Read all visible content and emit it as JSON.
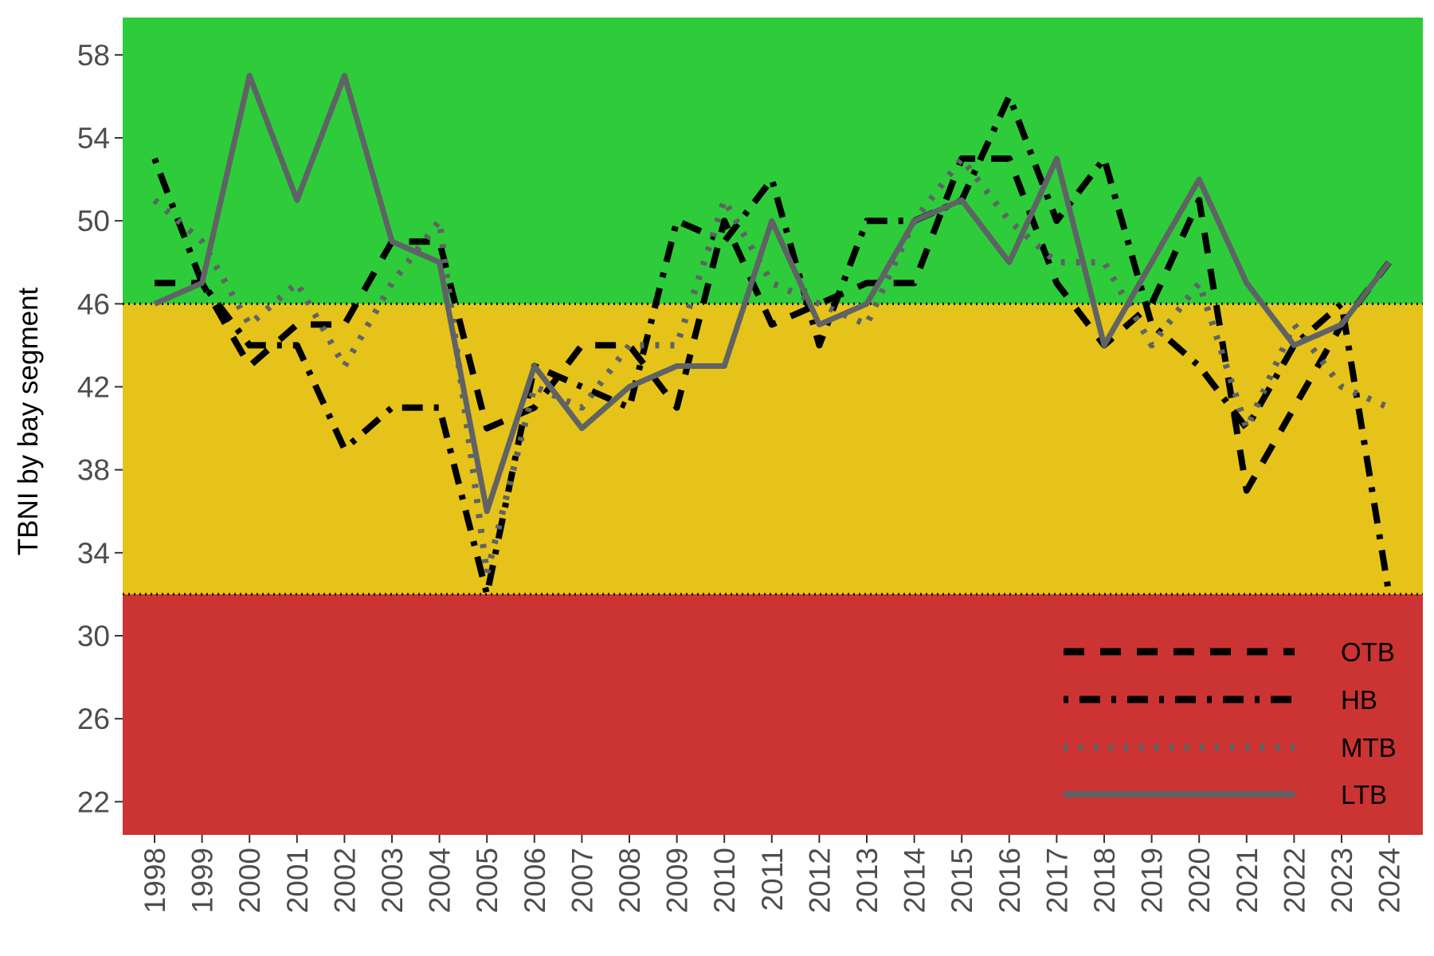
{
  "chart_data": {
    "type": "line",
    "title": "",
    "xlabel": "",
    "ylabel": "TBNI by bay segment",
    "ylim": [
      20.4,
      59.8
    ],
    "yticks": [
      22,
      26,
      30,
      34,
      38,
      42,
      46,
      50,
      54,
      58
    ],
    "x": [
      "1998",
      "1999",
      "2000",
      "2001",
      "2002",
      "2003",
      "2004",
      "2005",
      "2006",
      "2007",
      "2008",
      "2009",
      "2010",
      "2011",
      "2012",
      "2013",
      "2014",
      "2015",
      "2016",
      "2017",
      "2018",
      "2019",
      "2020",
      "2021",
      "2022",
      "2023",
      "2024"
    ],
    "bands": [
      {
        "from": 20.4,
        "to": 32,
        "color": "#cc3333"
      },
      {
        "from": 32,
        "to": 46,
        "color": "#e6c31a"
      },
      {
        "from": 46,
        "to": 59.8,
        "color": "#2ecc3a"
      }
    ],
    "thresholds": [
      32,
      46
    ],
    "legend_position": "bottom-right",
    "series": [
      {
        "name": "OTB",
        "style": "dashed",
        "color": "#000000",
        "values": [
          47,
          47,
          43,
          45,
          45,
          49,
          49,
          40,
          41,
          44,
          44,
          41,
          50,
          45,
          46,
          47,
          47,
          53,
          53,
          47,
          44,
          46,
          51,
          37,
          41,
          45,
          48
        ]
      },
      {
        "name": "HB",
        "style": "dashdot",
        "color": "#000000",
        "values": [
          53,
          47,
          44,
          44,
          39,
          41,
          41,
          32,
          43,
          42,
          41,
          50,
          49,
          52,
          44,
          50,
          50,
          51,
          56,
          50,
          53,
          45,
          43,
          40,
          44,
          46,
          32
        ]
      },
      {
        "name": "MTB",
        "style": "dotted",
        "color": "#5f6365",
        "values": [
          51,
          49,
          45,
          47,
          43,
          47,
          50,
          33,
          42,
          41,
          44,
          44,
          51,
          47,
          46,
          45,
          50,
          53,
          50,
          48,
          48,
          44,
          47,
          40,
          45,
          42,
          41
        ]
      },
      {
        "name": "LTB",
        "style": "solid",
        "color": "#5f6365",
        "values": [
          46,
          47,
          57,
          51,
          57,
          49,
          48,
          36,
          43,
          40,
          42,
          43,
          43,
          50,
          45,
          46,
          50,
          51,
          48,
          53,
          44,
          48,
          52,
          47,
          44,
          45,
          48
        ]
      }
    ]
  }
}
